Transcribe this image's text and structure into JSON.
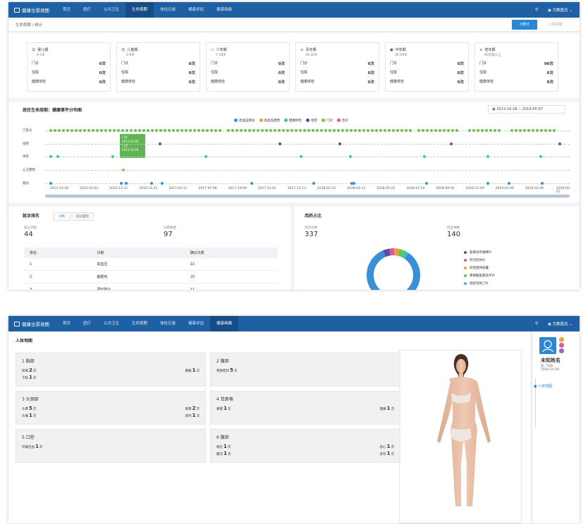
{
  "app": {
    "name": "健康全景视图"
  },
  "nav": {
    "items": [
      "首页",
      "医疗",
      "公共卫生",
      "生命周期",
      "体检记录",
      "健康评估",
      "健康画像"
    ],
    "active_screen1": 3,
    "active_screen2": 6,
    "user": "大数医达"
  },
  "screen1": {
    "breadcrumb": [
      "生命周期",
      "统计"
    ],
    "buttons": {
      "stat": "统计",
      "time_axis": "时间轴"
    },
    "age_groups": [
      {
        "name": "婴儿期",
        "range": "0-1岁",
        "icon": "baby-icon",
        "outpatient": "0次",
        "inpatient": "0次",
        "checkup": "0次"
      },
      {
        "name": "儿童期",
        "range": "2-6岁",
        "icon": "child-icon",
        "outpatient": "0次",
        "inpatient": "0次",
        "checkup": "0次"
      },
      {
        "name": "少年期",
        "range": "7-18岁",
        "icon": "teen-icon",
        "outpatient": "0次",
        "inpatient": "0次",
        "checkup": "0次"
      },
      {
        "name": "青年期",
        "range": "19-35岁",
        "icon": "youth-icon",
        "outpatient": "0次",
        "inpatient": "0次",
        "checkup": "0次"
      },
      {
        "name": "中年期",
        "range": "36-59岁",
        "icon": "middle-age-icon",
        "outpatient": "0次",
        "inpatient": "0次",
        "checkup": "0次"
      },
      {
        "name": "老年期",
        "range": "60岁及以上",
        "icon": "elderly-icon",
        "outpatient": "90次",
        "inpatient": "6次",
        "checkup": "8次"
      }
    ],
    "row_labels": {
      "outpatient": "门诊",
      "inpatient": "住院",
      "checkup": "健康体检"
    },
    "timeline": {
      "title": "居民生命周期：健康事件分布图",
      "date_start": "2013-10-28",
      "date_sep": "~",
      "date_end": "2019-05-07",
      "legend": [
        {
          "name": "高血压随访",
          "color": "#3b8fd6"
        },
        {
          "name": "高血压建档",
          "color": "#ef9a3c"
        },
        {
          "name": "健康体检",
          "color": "#3cc3b6"
        },
        {
          "name": "住院",
          "color": "#5b4ea0"
        },
        {
          "name": "门诊",
          "color": "#6dc04e"
        },
        {
          "name": "急诊",
          "color": "#e2559a"
        }
      ],
      "rows": [
        "门急诊",
        "住院",
        "体检",
        "公卫建档",
        "随访"
      ],
      "x_ticks": [
        "2013-10-28",
        "2015-02-02",
        "2015-12-11",
        "2016-11-21",
        "2017-05-11",
        "2017-07-06",
        "2017-10-09",
        "2017-11-01",
        "2017-12-13",
        "2018-02-15",
        "2018-04-11",
        "2018-05-25",
        "2018-07-24",
        "2018-09-05",
        "2018-11-09",
        "2019-01-09",
        "2019-02-08",
        "2019-05-07"
      ],
      "tooltip_lines": [
        "门诊",
        "2015-10-30",
        "门诊",
        "2015-10-30"
      ]
    },
    "ranking": {
      "title": "就诊排名",
      "tabs": [
        "诊断",
        "就诊医院"
      ],
      "visits_label": "就诊次数",
      "visits_value": "44",
      "diag_label": "诊断数量",
      "diag_value": "97",
      "columns": [
        "排名",
        "诊断",
        "确诊次数"
      ],
      "rows": [
        [
          "1",
          "高血压",
          "22"
        ],
        [
          "2",
          "脑梗死",
          "20"
        ],
        [
          "3",
          "颈动脉炎",
          "11"
        ]
      ]
    },
    "drug": {
      "title": "用药占比",
      "count_label": "用药次数",
      "count_value": "337",
      "kinds_label": "药品种数",
      "kinds_value": "140",
      "legend": [
        {
          "name": "氨氯地平缓释片",
          "color": "#5b4ea0"
        },
        {
          "name": "阿司匹林片",
          "color": "#e2559a"
        },
        {
          "name": "阿莫西林胶囊",
          "color": "#ef9a3c"
        },
        {
          "name": "苯磺酸氨氯地平片",
          "color": "#6dc04e"
        },
        {
          "name": "瑞舒伐他汀片",
          "color": "#3cc3b6"
        }
      ],
      "slices": [
        {
          "value": 84,
          "color": "#3b8fd6"
        },
        {
          "value": 4,
          "color": "#5b4ea0"
        },
        {
          "value": 3,
          "color": "#e2559a"
        },
        {
          "value": 3,
          "color": "#ef9a3c"
        },
        {
          "value": 3,
          "color": "#6dc04e"
        },
        {
          "value": 3,
          "color": "#3cc3b6"
        }
      ]
    }
  },
  "screen2": {
    "title": "人体地图",
    "regions": [
      {
        "title": "1 胸部",
        "items": [
          [
            "咳嗽",
            "2",
            "次"
          ],
          [
            "胸痛",
            "1",
            "次"
          ],
          [
            "干咳",
            "1",
            "次"
          ]
        ]
      },
      {
        "title": "2 腹部",
        "items": [
          [
            "胃部症状",
            "5",
            "次"
          ]
        ]
      },
      {
        "title": "3 头颈部",
        "items": [
          [
            "头晕",
            "5",
            "次"
          ],
          [
            "眩晕",
            "2",
            "次"
          ],
          [
            "头痛",
            "1",
            "次"
          ],
          [
            "耳鸣",
            "1",
            "次"
          ]
        ]
      },
      {
        "title": "4 耳鼻喉",
        "items": [
          [
            "鼻塞",
            "1",
            "次"
          ],
          [
            "咽痛",
            "1",
            "次"
          ]
        ]
      },
      {
        "title": "5 口腔",
        "items": [
          [
            "牙龈出血",
            "1",
            "次"
          ]
        ]
      },
      {
        "title": "6 腹部",
        "items": [
          [
            "呕吐",
            "1",
            "次"
          ],
          [
            "恶心",
            "1",
            "次"
          ],
          [
            "腹泻",
            "1",
            "次"
          ],
          [
            "多饮",
            "1",
            "次"
          ]
        ]
      }
    ],
    "profile": {
      "name": "未知姓名",
      "gender_age": "女, 76岁",
      "birth": "1943-10-30",
      "link": "人体地图"
    }
  }
}
